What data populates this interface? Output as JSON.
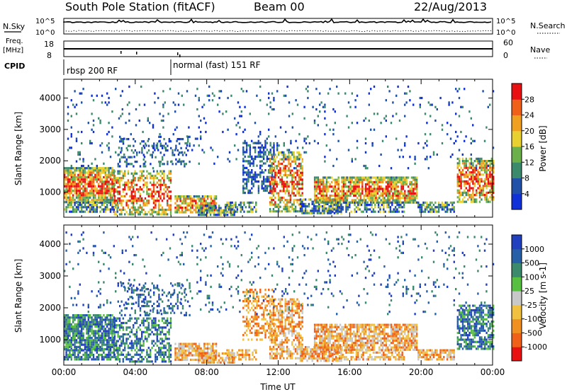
{
  "header": {
    "station": "South Pole Station (fitACF)",
    "beam": "Beam 00",
    "date": "22/Aug/2013"
  },
  "strip_panel": {
    "left_top_label": "N.Sky",
    "left_top_ticks": [
      "10^5",
      "10^0"
    ],
    "right_top_label": "N.Search",
    "right_top_ticks": [
      "10^5",
      "10^0"
    ],
    "freq_label_line1": "Freq.",
    "freq_label_line2": "[MHz]",
    "freq_ticks": [
      "18",
      "8"
    ],
    "nave_label": "Nave",
    "nave_ticks": [
      "60",
      "0"
    ],
    "cpid_label": "CPID",
    "cpid_segments": [
      {
        "label": "rbsp 200 RF",
        "start_hour": 0
      },
      {
        "label": "normal (fast) 151 RF",
        "start_hour": 6
      }
    ]
  },
  "chart_data": [
    {
      "type": "heatmap",
      "name": "power",
      "ylabel": "Slant Range [km]",
      "xlabel": "",
      "ylim": [
        200,
        4600
      ],
      "yticks": [
        "1000",
        "2000",
        "3000",
        "4000"
      ],
      "xlim_hours": [
        0,
        24
      ],
      "colorbar": {
        "label": "Power [dB]",
        "ticks": [
          "4",
          "8",
          "12",
          "16",
          "20",
          "24",
          "28"
        ],
        "colors": [
          "#1030d8",
          "#2050a8",
          "#3c8a6c",
          "#6cb04c",
          "#e8d030",
          "#f0a020",
          "#f06018",
          "#e81010"
        ]
      }
    },
    {
      "type": "heatmap",
      "name": "velocity",
      "ylabel": "Slant Range [km]",
      "xlabel": "Time UT",
      "ylim": [
        200,
        4600
      ],
      "yticks": [
        "1000",
        "2000",
        "3000",
        "4000"
      ],
      "xticks": [
        "00:00",
        "04:00",
        "08:00",
        "12:00",
        "16:00",
        "20:00",
        "00:00"
      ],
      "xlim_hours": [
        0,
        24
      ],
      "colorbar": {
        "label": "Velocity [m s-1]",
        "ticks": [
          "1000",
          "500",
          "100",
          "25",
          "-25",
          "-100",
          "-500",
          "-1000"
        ],
        "colors": [
          "#2040c0",
          "#2860a8",
          "#3c8a6c",
          "#58c040",
          "#c8c8c8",
          "#f0c040",
          "#f09020",
          "#f06018",
          "#e81010"
        ]
      }
    }
  ]
}
